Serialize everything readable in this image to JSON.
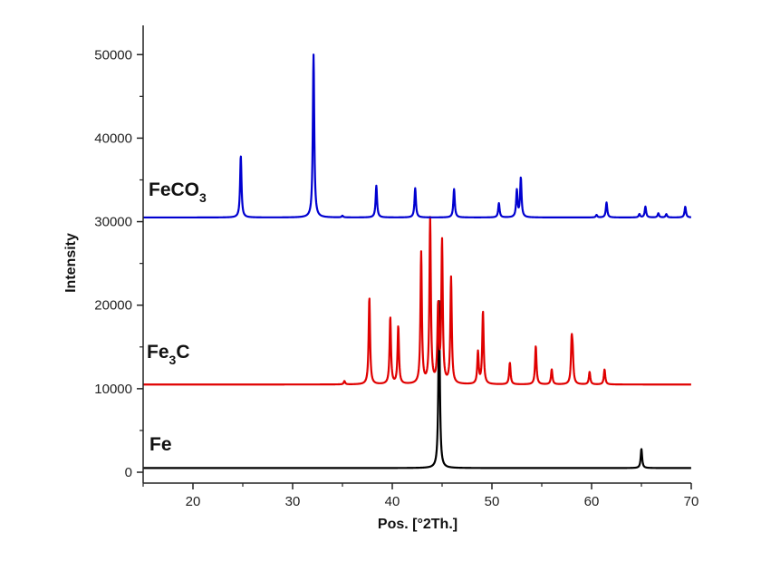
{
  "chart_data": {
    "type": "line",
    "xlabel": "Pos. [°2Th.]",
    "ylabel": "Intensity",
    "xlim": [
      15,
      70
    ],
    "ylim": [
      -1300,
      53500
    ],
    "x_ticks": [
      20,
      30,
      40,
      50,
      60,
      70
    ],
    "x_tick_labels": [
      "20",
      "30",
      "40",
      "50",
      "60",
      "70"
    ],
    "y_ticks": [
      0,
      10000,
      20000,
      30000,
      40000,
      50000
    ],
    "y_tick_labels": [
      "0",
      "10000",
      "20000",
      "30000",
      "40000",
      "50000"
    ],
    "grid": false,
    "legend": "none",
    "series": [
      {
        "label_main": "Fe",
        "label_sub": "",
        "color": "#000000",
        "baseline": 500,
        "peaks": [
          [
            44.7,
            20000
          ],
          [
            65.0,
            2300
          ]
        ]
      },
      {
        "label_main": "Fe",
        "label_sub": "3",
        "label_end": "C",
        "color": "#e00000",
        "baseline": 10500,
        "peaks": [
          [
            35.2,
            400
          ],
          [
            37.7,
            10400
          ],
          [
            39.8,
            8000
          ],
          [
            40.6,
            6900
          ],
          [
            42.9,
            15700
          ],
          [
            43.8,
            19700
          ],
          [
            44.6,
            9000
          ],
          [
            44.99,
            8400
          ],
          [
            45.0,
            8600
          ],
          [
            45.9,
            12700
          ],
          [
            48.6,
            3800
          ],
          [
            49.1,
            8700
          ],
          [
            51.8,
            2600
          ],
          [
            54.4,
            4600
          ],
          [
            56.0,
            1800
          ],
          [
            58.0,
            4700
          ],
          [
            58.1,
            3000
          ],
          [
            59.8,
            1500
          ],
          [
            61.3,
            1800
          ]
        ]
      },
      {
        "label_main": "FeCO",
        "label_sub": "3",
        "color": "#0000d0",
        "baseline": 30500,
        "peaks": [
          [
            24.8,
            7400
          ],
          [
            32.1,
            19500
          ],
          [
            35.0,
            200
          ],
          [
            38.4,
            3800
          ],
          [
            42.3,
            3500
          ],
          [
            46.2,
            3400
          ],
          [
            50.7,
            1700
          ],
          [
            52.5,
            3200
          ],
          [
            52.9,
            4700
          ],
          [
            60.5,
            300
          ],
          [
            61.5,
            1800
          ],
          [
            64.8,
            400
          ],
          [
            65.4,
            1300
          ],
          [
            66.7,
            500
          ],
          [
            67.5,
            400
          ],
          [
            69.4,
            1300
          ]
        ]
      }
    ]
  }
}
